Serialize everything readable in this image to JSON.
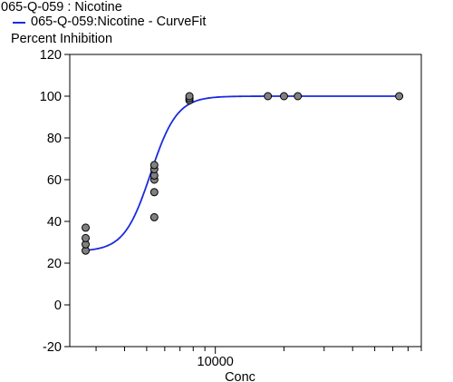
{
  "chart_data": {
    "type": "scatter",
    "title": "065-Q-059  : Nicotine",
    "legend": [
      {
        "label": "065-Q-059:Nicotine - CurveFit",
        "color": "#1a2be0"
      }
    ],
    "ylabel": "Percent Inhibition",
    "xlabel": "Conc",
    "xscale": "log",
    "xlim": [
      2300,
      80000
    ],
    "ylim": [
      -20,
      120
    ],
    "yticks": [
      -20,
      0,
      20,
      40,
      60,
      80,
      100,
      120
    ],
    "xticks_labeled": [
      10000
    ],
    "grid": false,
    "series": [
      {
        "kind": "points",
        "color": "#808080",
        "points": [
          [
            2700,
            26
          ],
          [
            2700,
            29
          ],
          [
            2700,
            32
          ],
          [
            2700,
            37
          ],
          [
            5400,
            42
          ],
          [
            5400,
            54
          ],
          [
            5400,
            60
          ],
          [
            5400,
            62
          ],
          [
            5400,
            65
          ],
          [
            5400,
            67
          ],
          [
            7700,
            98
          ],
          [
            7700,
            99
          ],
          [
            7700,
            100
          ],
          [
            17000,
            100
          ],
          [
            20000,
            100
          ],
          [
            23000,
            100
          ],
          [
            64000,
            100
          ]
        ]
      },
      {
        "name": "065-Q-059:Nicotine - CurveFit",
        "kind": "curve",
        "color": "#1a2be0",
        "model": "4PL",
        "bottom": 25.6,
        "top": 100,
        "ec50": 5200,
        "hill": 7.5
      }
    ]
  }
}
